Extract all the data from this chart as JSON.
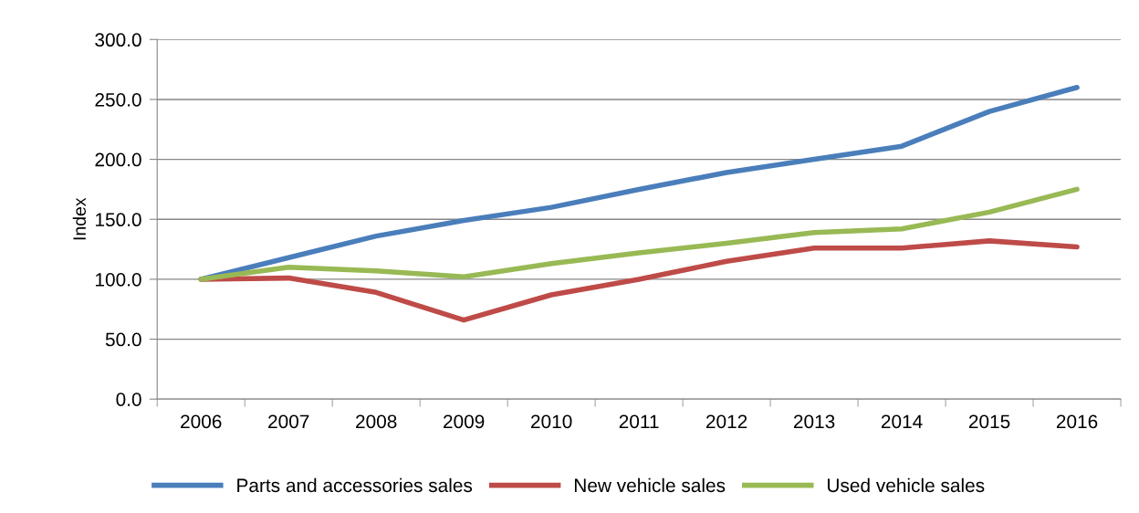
{
  "chart_data": {
    "type": "line",
    "ylabel": "Index",
    "categories": [
      "2006",
      "2007",
      "2008",
      "2009",
      "2010",
      "2011",
      "2012",
      "2013",
      "2014",
      "2015",
      "2016"
    ],
    "series": [
      {
        "name": "Parts and accessories sales",
        "color": "#4a7ebb",
        "values": [
          100,
          118,
          136,
          149,
          160,
          175,
          189,
          200,
          211,
          240,
          260
        ]
      },
      {
        "name": "New vehicle sales",
        "color": "#be4b48",
        "values": [
          100,
          101,
          89,
          66,
          87,
          100,
          115,
          126,
          126,
          132,
          127
        ]
      },
      {
        "name": "Used vehicle sales",
        "color": "#98b954",
        "values": [
          100,
          110,
          107,
          102,
          113,
          122,
          130,
          139,
          142,
          156,
          175
        ]
      }
    ],
    "ylim": [
      0,
      300
    ],
    "yticks": [
      {
        "value": 0,
        "label": "0.0"
      },
      {
        "value": 50,
        "label": "50.0"
      },
      {
        "value": 100,
        "label": "100.0"
      },
      {
        "value": 150,
        "label": "150.0"
      },
      {
        "value": 200,
        "label": "200.0"
      },
      {
        "value": 250,
        "label": "250.0"
      },
      {
        "value": 300,
        "label": "300.0"
      }
    ],
    "grid": "y",
    "legend": "bottom",
    "marker": "none",
    "line_style": "solid"
  }
}
